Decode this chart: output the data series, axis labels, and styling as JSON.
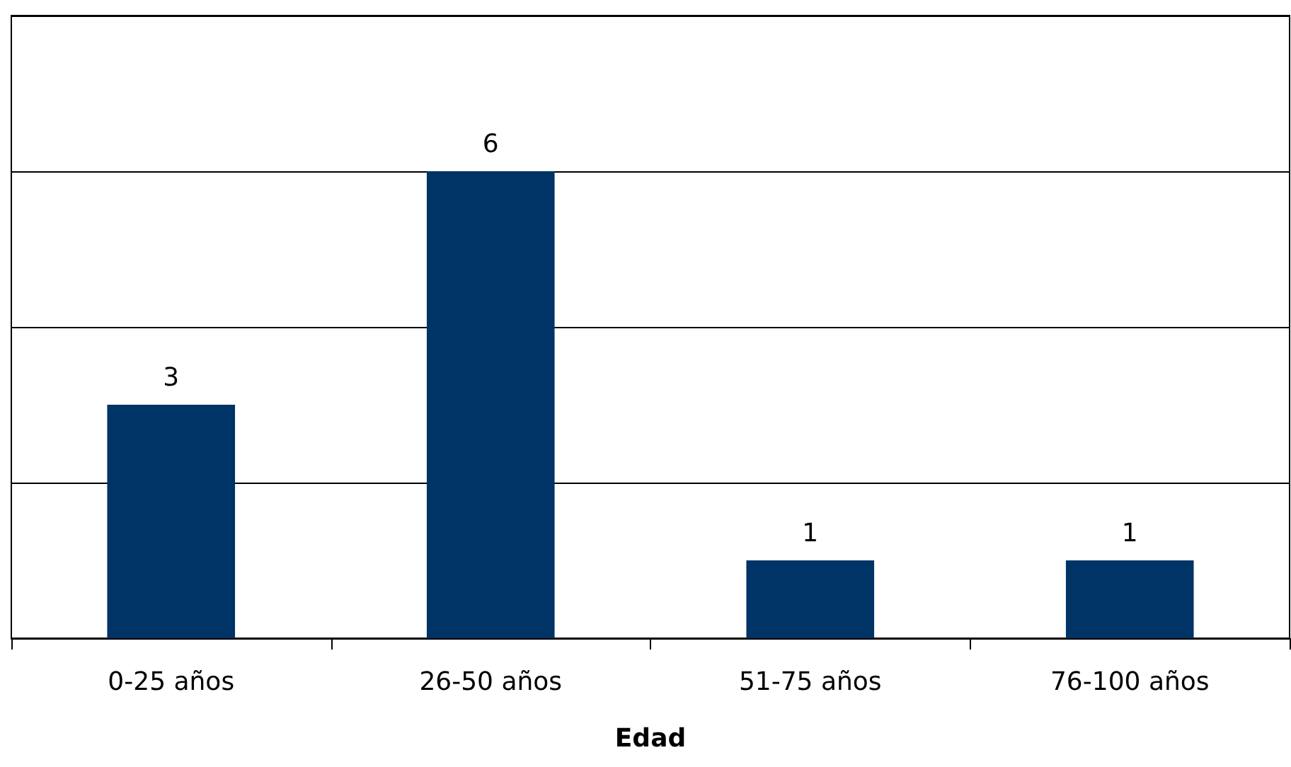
{
  "chart_data": {
    "type": "bar",
    "xlabel": "Edad",
    "categories": [
      "0-25 años",
      "26-50 años",
      "51-75 años",
      "76-100 años"
    ],
    "values": [
      3,
      6,
      1,
      1
    ],
    "color": "#003366",
    "ylim": [
      0,
      8
    ],
    "yticks": [
      {
        "value": 0,
        "label": null
      },
      {
        "value": 2,
        "label": null
      },
      {
        "value": 4,
        "label": null
      },
      {
        "value": 6,
        "label": null
      },
      {
        "value": 8,
        "label": null
      }
    ],
    "grid": "y",
    "tick_labels": "x",
    "data_labels": true
  }
}
